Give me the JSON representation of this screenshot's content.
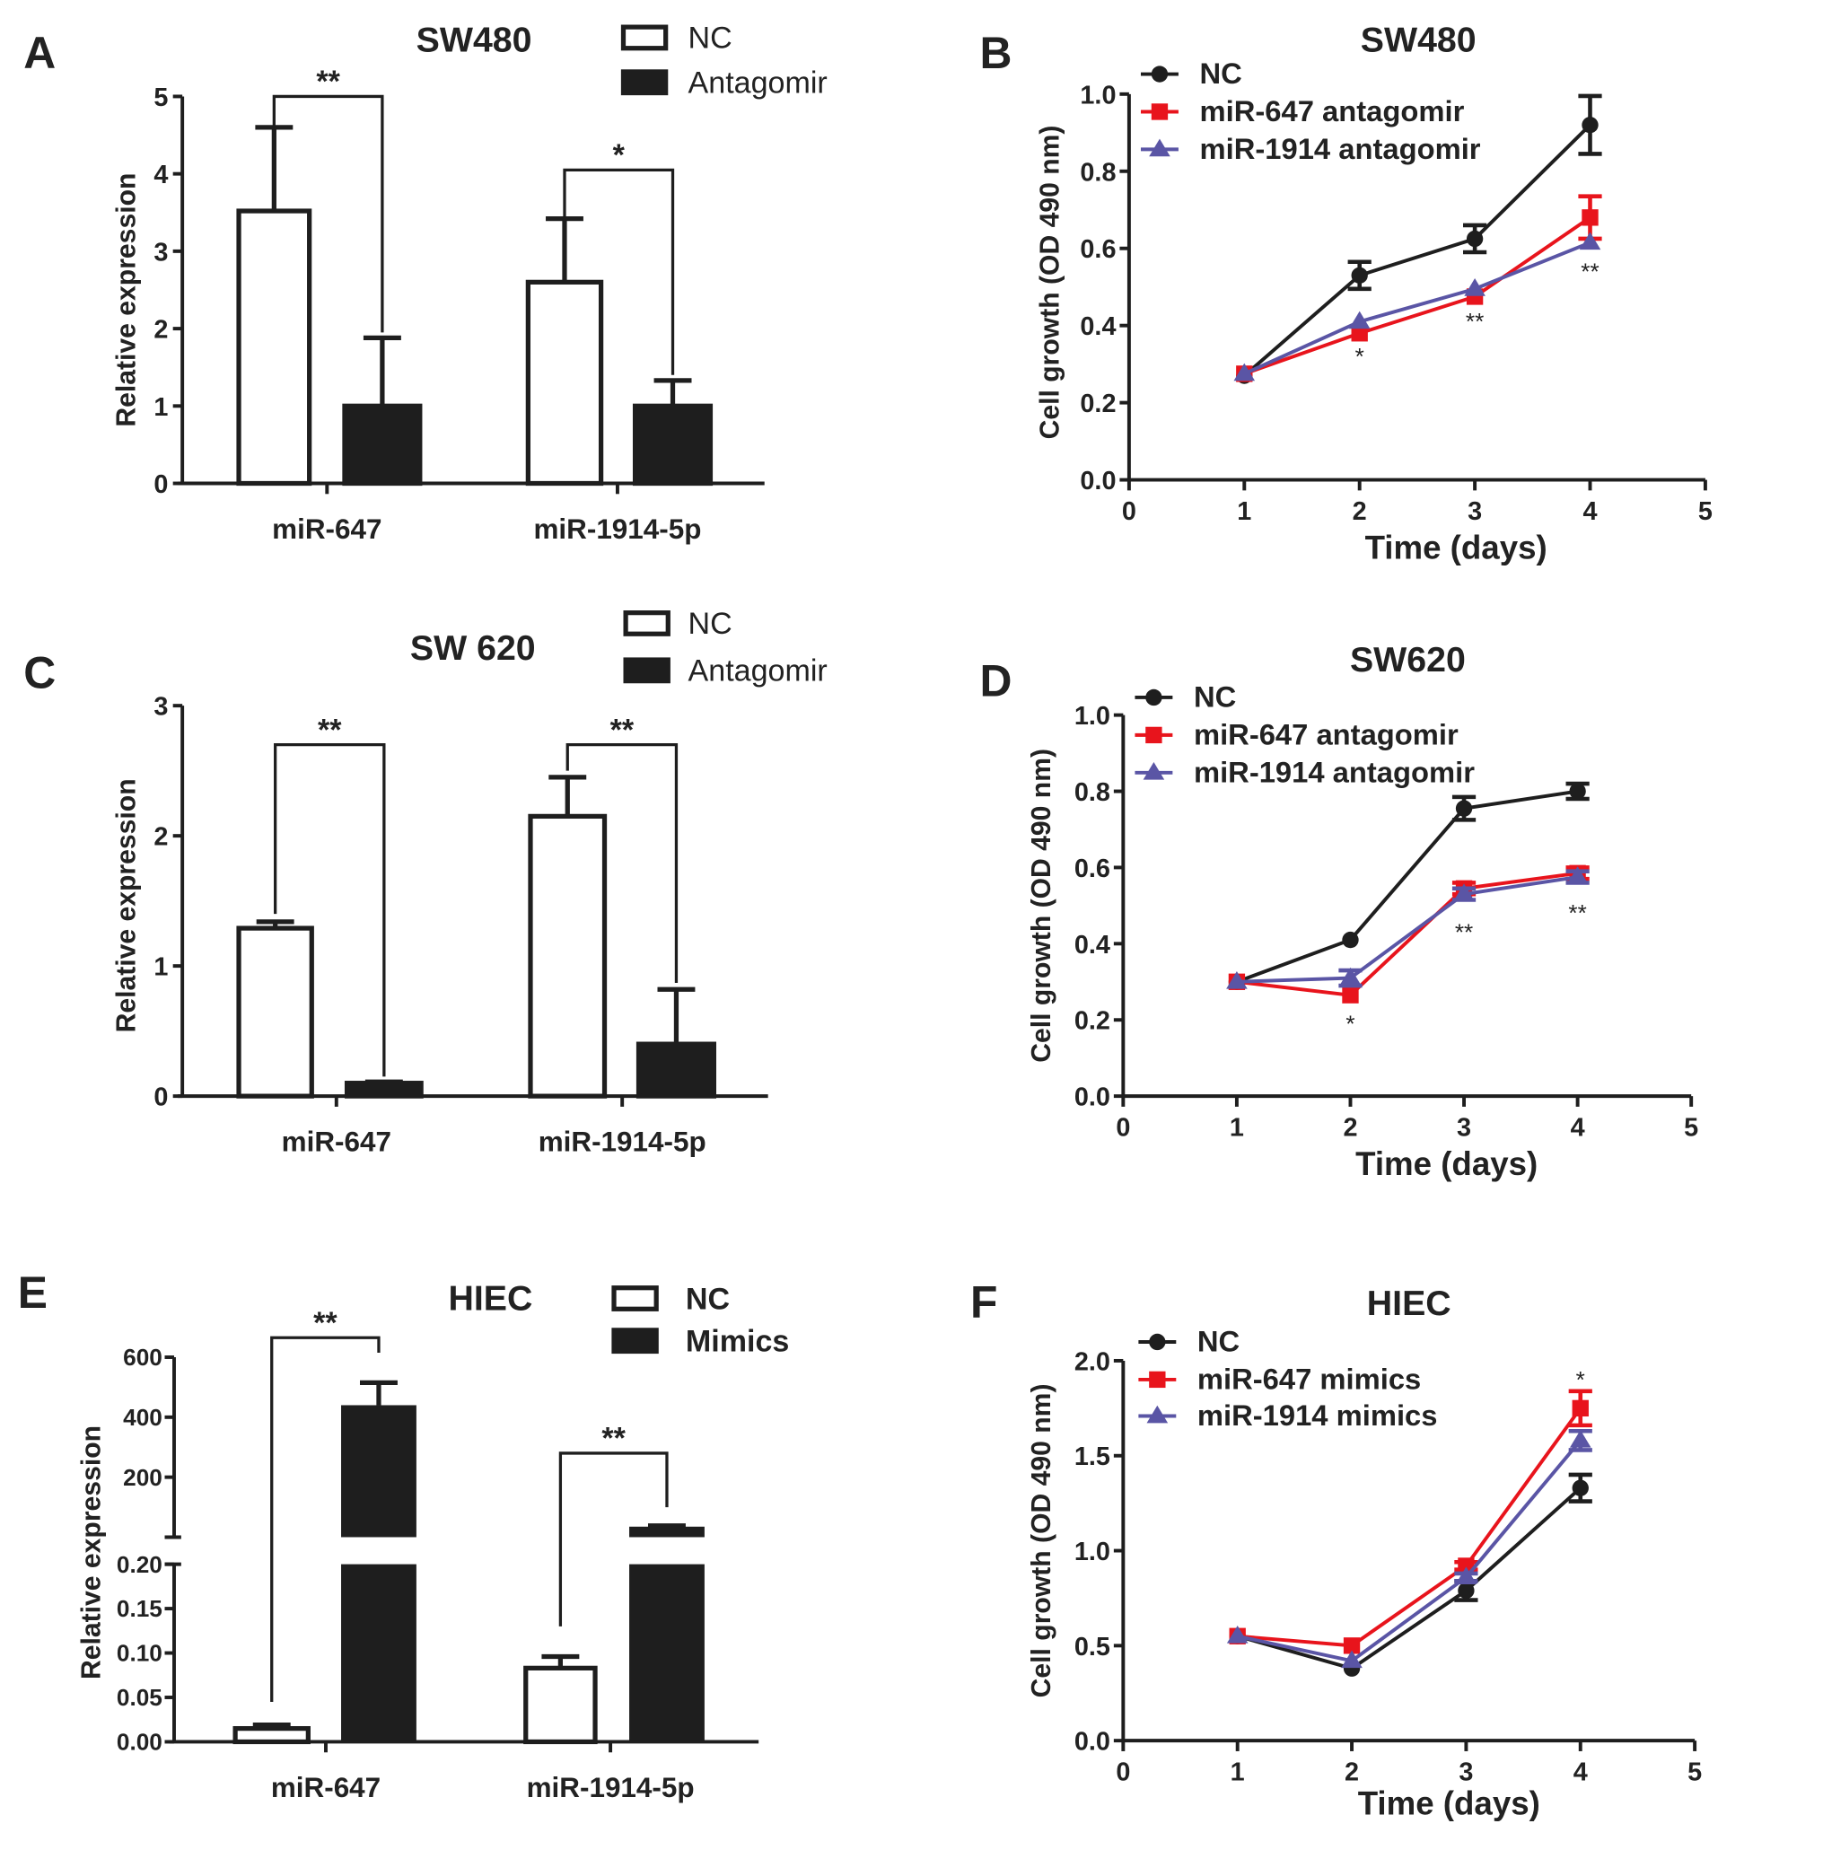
{
  "chart_data": [
    {
      "panel": "A",
      "type": "bar",
      "title": "SW480",
      "ylabel": "Relative expression",
      "xlabel": "",
      "ylim": [
        0,
        5
      ],
      "yticks": [
        "0",
        "1",
        "2",
        "3",
        "4",
        "5"
      ],
      "categories": [
        "miR-647",
        "miR-1914-5p"
      ],
      "series": [
        {
          "name": "NC",
          "fill": "#ffffff",
          "values": [
            3.52,
            2.6
          ],
          "err_top": [
            4.6,
            3.42
          ]
        },
        {
          "name": "Antagomir",
          "fill": "#1e1e1e",
          "values": [
            1.0,
            1.0
          ],
          "err_top": [
            1.88,
            1.33
          ]
        }
      ],
      "brackets": [
        {
          "label": "**",
          "category": 0,
          "top": 5.0,
          "left_end": 4.6,
          "right_end": 1.95
        },
        {
          "label": "*",
          "category": 1,
          "top": 4.05,
          "left_end": 3.45,
          "right_end": 1.4
        }
      ]
    },
    {
      "panel": "B",
      "type": "line",
      "title": "SW480",
      "ylabel": "Cell growth (OD 490 nm)",
      "xlabel": "Time (days)",
      "xlim": [
        0,
        5
      ],
      "ylim": [
        0,
        1.0
      ],
      "xticks": [
        "0",
        "1",
        "2",
        "3",
        "4",
        "5"
      ],
      "yticks": [
        "0.0",
        "0.2",
        "0.4",
        "0.6",
        "0.8",
        "1.0"
      ],
      "x": [
        1,
        2,
        3,
        4
      ],
      "series": [
        {
          "name": "NC",
          "color": "#1e1e1e",
          "marker": "circle",
          "y": [
            0.27,
            0.53,
            0.625,
            0.92
          ],
          "err": [
            0.005,
            0.035,
            0.035,
            0.075
          ]
        },
        {
          "name": "miR-647 antagomir",
          "color": "#e8141c",
          "marker": "square",
          "y": [
            0.275,
            0.38,
            0.475,
            0.68
          ],
          "err": [
            0.005,
            0.01,
            0.01,
            0.055
          ]
        },
        {
          "name": "miR-1914 antagomir",
          "color": "#5a55a5",
          "marker": "triangle",
          "y": [
            0.275,
            0.41,
            0.495,
            0.615
          ],
          "err": [
            0.005,
            0.01,
            0.01,
            0.01
          ]
        }
      ],
      "annotations": [
        {
          "x": 2,
          "y": 0.33,
          "text": "*"
        },
        {
          "x": 3,
          "y": 0.42,
          "text": "**"
        },
        {
          "x": 4,
          "y": 0.55,
          "text": "**"
        }
      ]
    },
    {
      "panel": "C",
      "type": "bar",
      "title": "SW 620",
      "ylabel": "Relative expression",
      "xlabel": "",
      "ylim": [
        0,
        3
      ],
      "yticks": [
        "0",
        "1",
        "2",
        "3"
      ],
      "categories": [
        "miR-647",
        "miR-1914-5p"
      ],
      "series": [
        {
          "name": "NC",
          "fill": "#ffffff",
          "values": [
            1.29,
            2.15
          ],
          "err_top": [
            1.34,
            2.45
          ]
        },
        {
          "name": "Antagomir",
          "fill": "#1e1e1e",
          "values": [
            0.1,
            0.4
          ],
          "err_top": [
            0.11,
            0.82
          ]
        }
      ],
      "brackets": [
        {
          "label": "**",
          "category": 0,
          "top": 2.7,
          "left_end": 1.4,
          "right_end": 0.15
        },
        {
          "label": "**",
          "category": 1,
          "top": 2.7,
          "left_end": 2.5,
          "right_end": 0.87
        }
      ]
    },
    {
      "panel": "D",
      "type": "line",
      "title": "SW620",
      "ylabel": "Cell growth (OD 490 nm)",
      "xlabel": "Time (days)",
      "xlim": [
        0,
        5
      ],
      "ylim": [
        0,
        1.0
      ],
      "xticks": [
        "0",
        "1",
        "2",
        "3",
        "4",
        "5"
      ],
      "yticks": [
        "0.0",
        "0.2",
        "0.4",
        "0.6",
        "0.8",
        "1.0"
      ],
      "x": [
        1,
        2,
        3,
        4
      ],
      "series": [
        {
          "name": "NC",
          "color": "#1e1e1e",
          "marker": "circle",
          "y": [
            0.3,
            0.41,
            0.755,
            0.8
          ],
          "err": [
            0.005,
            0.01,
            0.03,
            0.02
          ]
        },
        {
          "name": "miR-647 antagomir",
          "color": "#e8141c",
          "marker": "square",
          "y": [
            0.3,
            0.265,
            0.545,
            0.585
          ],
          "err": [
            0.005,
            0.01,
            0.015,
            0.015
          ]
        },
        {
          "name": "miR-1914 antagomir",
          "color": "#5a55a5",
          "marker": "triangle",
          "y": [
            0.3,
            0.31,
            0.53,
            0.575
          ],
          "err": [
            0.005,
            0.02,
            0.015,
            0.015
          ]
        }
      ],
      "annotations": [
        {
          "x": 2,
          "y": 0.2,
          "text": "*"
        },
        {
          "x": 3,
          "y": 0.44,
          "text": "**"
        },
        {
          "x": 4,
          "y": 0.49,
          "text": "**"
        }
      ]
    },
    {
      "panel": "E",
      "type": "bar",
      "title": "HIEC",
      "ylabel": "Relative expression",
      "xlabel": "",
      "broken_axis": {
        "lower": [
          0,
          0.2
        ],
        "upper_max": 600
      },
      "yticks_lower": [
        "0.00",
        "0.05",
        "0.10",
        "0.15",
        "0.20"
      ],
      "yticks_upper": [
        "200",
        "400",
        "600"
      ],
      "categories": [
        "miR-647",
        "miR-1914-5p"
      ],
      "series": [
        {
          "name": "NC",
          "fill": "#ffffff",
          "values": [
            0.015,
            0.083
          ],
          "err_top": [
            0.019,
            0.096
          ]
        },
        {
          "name": "Mimics",
          "fill": "#1e1e1e",
          "values": [
            440,
            35
          ],
          "err_top": [
            515,
            38
          ]
        }
      ],
      "brackets": [
        {
          "label": "**",
          "category": 0,
          "top": 665,
          "left_end": 0.045,
          "right_end": 615
        },
        {
          "label": "**",
          "category": 1,
          "top": 280,
          "left_end": 0.13,
          "right_end": 100
        }
      ]
    },
    {
      "panel": "F",
      "type": "line",
      "title": "HIEC",
      "ylabel": "Cell growth (OD 490 nm)",
      "xlabel": "Time (days)",
      "xlim": [
        0,
        5
      ],
      "ylim": [
        0,
        2.0
      ],
      "xticks": [
        "0",
        "1",
        "2",
        "3",
        "4",
        "5"
      ],
      "yticks": [
        "0.0",
        "0.5",
        "1.0",
        "1.5",
        "2.0"
      ],
      "x": [
        1,
        2,
        3,
        4
      ],
      "series": [
        {
          "name": "NC",
          "color": "#1e1e1e",
          "marker": "circle",
          "y": [
            0.55,
            0.38,
            0.79,
            1.33
          ],
          "err": [
            0.01,
            0.01,
            0.05,
            0.07
          ]
        },
        {
          "name": "miR-647 mimics",
          "color": "#e8141c",
          "marker": "square",
          "y": [
            0.55,
            0.5,
            0.92,
            1.75
          ],
          "err": [
            0.01,
            0.01,
            0.02,
            0.09
          ]
        },
        {
          "name": "miR-1914 mimics",
          "color": "#5a55a5",
          "marker": "triangle",
          "y": [
            0.55,
            0.42,
            0.86,
            1.58
          ],
          "err": [
            0.01,
            0.01,
            0.02,
            0.05
          ]
        }
      ],
      "annotations": [
        {
          "x": 4,
          "y": 1.92,
          "text": "*"
        }
      ]
    }
  ]
}
